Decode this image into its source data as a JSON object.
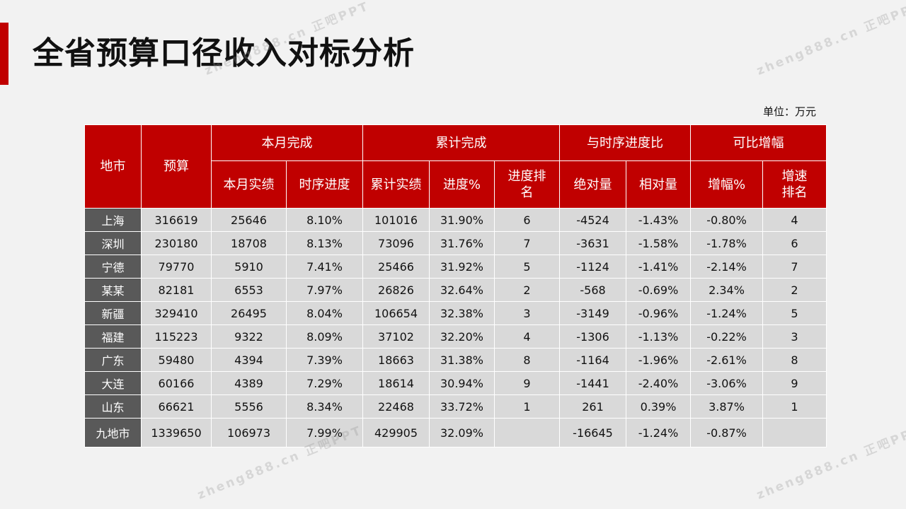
{
  "title": "全省预算口径收入对标分析",
  "unit_label": "单位：万元",
  "table": {
    "header_groups": {
      "city": "地市",
      "budget": "预算",
      "month": "本月完成",
      "cumulative": "累计完成",
      "schedule_compare": "与时序进度比",
      "comparable_growth": "可比增幅"
    },
    "sub_headers": {
      "month_actual": "本月实绩",
      "time_progress": "时序进度",
      "cum_actual": "累计实绩",
      "progress_pct": "进度%",
      "progress_rank": "进度排名",
      "absolute": "绝对量",
      "relative": "相对量",
      "growth_pct": "增幅%",
      "growth_rank": "增速排名"
    },
    "rows": [
      [
        "上海",
        "316619",
        "25646",
        "8.10%",
        "101016",
        "31.90%",
        "6",
        "-4524",
        "-1.43%",
        "-0.80%",
        "4"
      ],
      [
        "深圳",
        "230180",
        "18708",
        "8.13%",
        "73096",
        "31.76%",
        "7",
        "-3631",
        "-1.58%",
        "-1.78%",
        "6"
      ],
      [
        "宁德",
        "79770",
        "5910",
        "7.41%",
        "25466",
        "31.92%",
        "5",
        "-1124",
        "-1.41%",
        "-2.14%",
        "7"
      ],
      [
        "某某",
        "82181",
        "6553",
        "7.97%",
        "26826",
        "32.64%",
        "2",
        "-568",
        "-0.69%",
        "2.34%",
        "2"
      ],
      [
        "新疆",
        "329410",
        "26495",
        "8.04%",
        "106654",
        "32.38%",
        "3",
        "-3149",
        "-0.96%",
        "-1.24%",
        "5"
      ],
      [
        "福建",
        "115223",
        "9322",
        "8.09%",
        "37102",
        "32.20%",
        "4",
        "-1306",
        "-1.13%",
        "-0.22%",
        "3"
      ],
      [
        "广东",
        "59480",
        "4394",
        "7.39%",
        "18663",
        "31.38%",
        "8",
        "-1164",
        "-1.96%",
        "-2.61%",
        "8"
      ],
      [
        "大连",
        "60166",
        "4389",
        "7.29%",
        "18614",
        "30.94%",
        "9",
        "-1441",
        "-2.40%",
        "-3.06%",
        "9"
      ],
      [
        "山东",
        "66621",
        "5556",
        "8.34%",
        "22468",
        "33.72%",
        "1",
        "261",
        "0.39%",
        "3.87%",
        "1"
      ],
      [
        "九地市",
        "1339650",
        "106973",
        "7.99%",
        "429905",
        "32.09%",
        "",
        "-16645",
        "-1.24%",
        "-0.87%",
        ""
      ]
    ]
  },
  "watermark": "zheng888.cn 正吧PPT",
  "colors": {
    "accent": "#c00000",
    "row_bg": "#d9d9d9",
    "city_bg": "#595959"
  }
}
